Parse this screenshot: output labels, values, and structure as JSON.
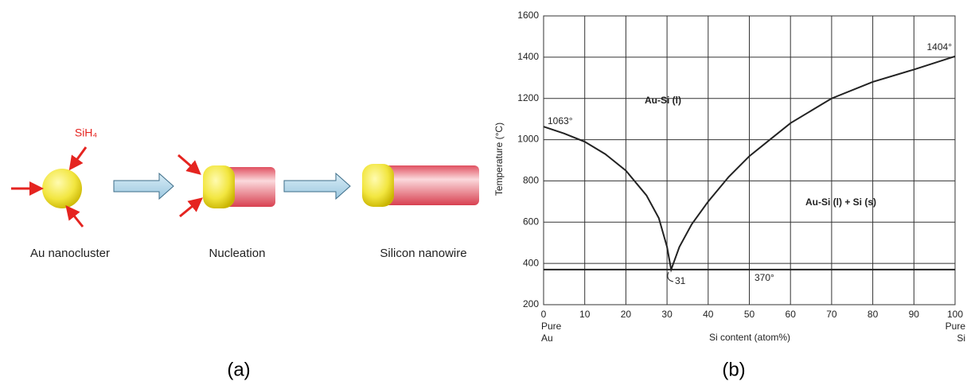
{
  "diagram": {
    "reagent": "SiH₄",
    "steps": [
      "Au nanocluster",
      "Nucleation",
      "Silicon nanowire"
    ],
    "label": "(a)"
  },
  "chart_data": {
    "type": "line",
    "label": "(b)",
    "y_label": "Temperature (°C)",
    "x_label": "Si content (atom%)",
    "xlim": [
      0,
      100
    ],
    "xticks": [
      0,
      10,
      20,
      30,
      40,
      50,
      60,
      70,
      80,
      90,
      100
    ],
    "ylim": [
      200,
      1600
    ],
    "yticks": [
      200,
      400,
      600,
      800,
      1000,
      1200,
      1400,
      1600
    ],
    "grid": true,
    "series": [
      {
        "color": "#222222",
        "x": [
          0,
          5,
          10,
          15,
          20,
          25,
          28,
          30,
          31,
          33,
          36,
          40,
          45,
          50,
          55,
          60,
          65,
          70,
          80,
          90,
          100
        ],
        "values": [
          1063,
          1030,
          990,
          930,
          850,
          730,
          620,
          480,
          370,
          480,
          590,
          700,
          820,
          920,
          1000,
          1080,
          1140,
          1200,
          1280,
          1340,
          1404
        ]
      },
      {
        "color": "#222222",
        "x": [
          0,
          100
        ],
        "values": [
          370,
          370
        ]
      }
    ],
    "annotations": [
      "1063°",
      "1404°",
      "Au-Si (l)",
      "Au-Si (l) + Si (s)",
      "31",
      "370°",
      "Pure",
      "Au",
      "Pure",
      "Si"
    ]
  }
}
